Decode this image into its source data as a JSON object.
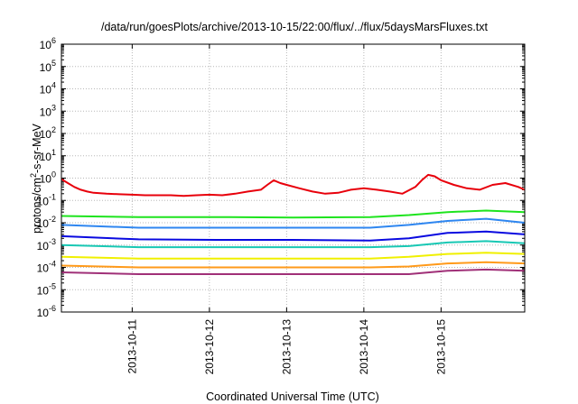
{
  "chart_data": {
    "type": "line",
    "title": "/data/run/goesPlots/archive/2013-10-15/22:00/flux/../flux/5daysMarsFluxes.txt",
    "xlabel": "Coordinated Universal Time (UTC)",
    "ylabel": {
      "prefix": "protons/cm",
      "superscript": "2",
      "suffix": "-s-sr-MeV"
    },
    "yscale": "log",
    "ylim": [
      1e-06,
      1000000.0
    ],
    "y_ticks": [
      {
        "value": 1e-06,
        "base": "10",
        "exp": "-6"
      },
      {
        "value": 1e-05,
        "base": "10",
        "exp": "-5"
      },
      {
        "value": 0.0001,
        "base": "10",
        "exp": "-4"
      },
      {
        "value": 0.001,
        "base": "10",
        "exp": "-3"
      },
      {
        "value": 0.01,
        "base": "10",
        "exp": "-2"
      },
      {
        "value": 0.1,
        "base": "10",
        "exp": "-1"
      },
      {
        "value": 1.0,
        "base": "10",
        "exp": "0"
      },
      {
        "value": 10.0,
        "base": "10",
        "exp": "1"
      },
      {
        "value": 100.0,
        "base": "10",
        "exp": "2"
      },
      {
        "value": 1000.0,
        "base": "10",
        "exp": "3"
      },
      {
        "value": 10000.0,
        "base": "10",
        "exp": "4"
      },
      {
        "value": 100000.0,
        "base": "10",
        "exp": "5"
      },
      {
        "value": 1000000.0,
        "base": "10",
        "exp": "6"
      }
    ],
    "xlim": [
      "2013-10-10 02:00",
      "2013-10-16 02:00"
    ],
    "x_ticks": [
      "2013-10-11",
      "2013-10-12",
      "2013-10-13",
      "2013-10-14",
      "2013-10-15"
    ],
    "grid": true,
    "series": [
      {
        "color": "#e8000b",
        "x": [
          "2013-10-10 02:00",
          "2013-10-10 04:00",
          "2013-10-10 06:00",
          "2013-10-10 08:00",
          "2013-10-10 10:00",
          "2013-10-10 12:00",
          "2013-10-10 16:00",
          "2013-10-10 20:00",
          "2013-10-11 00:00",
          "2013-10-11 04:00",
          "2013-10-11 08:00",
          "2013-10-11 12:00",
          "2013-10-11 16:00",
          "2013-10-11 20:00",
          "2013-10-12 00:00",
          "2013-10-12 04:00",
          "2013-10-12 08:00",
          "2013-10-12 12:00",
          "2013-10-12 16:00",
          "2013-10-12 18:00",
          "2013-10-12 20:00",
          "2013-10-12 22:00",
          "2013-10-13 00:00",
          "2013-10-13 04:00",
          "2013-10-13 08:00",
          "2013-10-13 12:00",
          "2013-10-13 16:00",
          "2013-10-13 20:00",
          "2013-10-14 00:00",
          "2013-10-14 04:00",
          "2013-10-14 08:00",
          "2013-10-14 12:00",
          "2013-10-14 16:00",
          "2013-10-14 18:00",
          "2013-10-14 20:00",
          "2013-10-14 22:00",
          "2013-10-15 00:00",
          "2013-10-15 04:00",
          "2013-10-15 08:00",
          "2013-10-15 12:00",
          "2013-10-15 16:00",
          "2013-10-15 20:00",
          "2013-10-16 00:00",
          "2013-10-16 02:00"
        ],
        "values": [
          0.9,
          0.6,
          0.4,
          0.3,
          0.25,
          0.22,
          0.2,
          0.19,
          0.18,
          0.17,
          0.17,
          0.17,
          0.16,
          0.17,
          0.18,
          0.17,
          0.2,
          0.25,
          0.3,
          0.5,
          0.8,
          0.6,
          0.5,
          0.35,
          0.25,
          0.2,
          0.22,
          0.3,
          0.35,
          0.3,
          0.25,
          0.2,
          0.4,
          0.8,
          1.4,
          1.2,
          0.8,
          0.5,
          0.35,
          0.3,
          0.5,
          0.6,
          0.4,
          0.3
        ]
      },
      {
        "color": "#1ee41e",
        "x": [
          "2013-10-10 02:00",
          "2013-10-11 02:00",
          "2013-10-12 02:00",
          "2013-10-13 02:00",
          "2013-10-14 02:00",
          "2013-10-14 14:00",
          "2013-10-15 02:00",
          "2013-10-15 14:00",
          "2013-10-16 02:00"
        ],
        "values": [
          0.02,
          0.018,
          0.018,
          0.017,
          0.018,
          0.022,
          0.03,
          0.035,
          0.03
        ]
      },
      {
        "color": "#2e86f0",
        "x": [
          "2013-10-10 02:00",
          "2013-10-11 02:00",
          "2013-10-12 02:00",
          "2013-10-13 02:00",
          "2013-10-14 02:00",
          "2013-10-14 14:00",
          "2013-10-15 02:00",
          "2013-10-15 14:00",
          "2013-10-16 02:00"
        ],
        "values": [
          0.008,
          0.006,
          0.006,
          0.006,
          0.006,
          0.008,
          0.012,
          0.015,
          0.01
        ]
      },
      {
        "color": "#0a0ae0",
        "x": [
          "2013-10-10 02:00",
          "2013-10-11 02:00",
          "2013-10-12 02:00",
          "2013-10-13 02:00",
          "2013-10-14 02:00",
          "2013-10-14 14:00",
          "2013-10-15 02:00",
          "2013-10-15 14:00",
          "2013-10-16 02:00"
        ],
        "values": [
          0.0025,
          0.0018,
          0.0017,
          0.0017,
          0.0016,
          0.002,
          0.0035,
          0.004,
          0.003
        ]
      },
      {
        "color": "#18c8b4",
        "x": [
          "2013-10-10 02:00",
          "2013-10-11 02:00",
          "2013-10-12 02:00",
          "2013-10-13 02:00",
          "2013-10-14 02:00",
          "2013-10-14 14:00",
          "2013-10-15 02:00",
          "2013-10-15 14:00",
          "2013-10-16 02:00"
        ],
        "values": [
          0.001,
          0.0008,
          0.0008,
          0.0008,
          0.0008,
          0.0009,
          0.0013,
          0.0015,
          0.0012
        ]
      },
      {
        "color": "#f0f000",
        "x": [
          "2013-10-10 02:00",
          "2013-10-11 02:00",
          "2013-10-12 02:00",
          "2013-10-13 02:00",
          "2013-10-14 02:00",
          "2013-10-14 14:00",
          "2013-10-15 02:00",
          "2013-10-15 14:00",
          "2013-10-16 02:00"
        ],
        "values": [
          0.0003,
          0.00025,
          0.00025,
          0.00025,
          0.00025,
          0.0003,
          0.0004,
          0.00045,
          0.0004
        ]
      },
      {
        "color": "#ff9a1a",
        "x": [
          "2013-10-10 02:00",
          "2013-10-11 02:00",
          "2013-10-12 02:00",
          "2013-10-13 02:00",
          "2013-10-14 02:00",
          "2013-10-14 14:00",
          "2013-10-15 02:00",
          "2013-10-15 14:00",
          "2013-10-16 02:00"
        ],
        "values": [
          0.00012,
          0.0001,
          0.0001,
          0.0001,
          0.0001,
          0.00011,
          0.00015,
          0.00017,
          0.00015
        ]
      },
      {
        "color": "#a03078",
        "x": [
          "2013-10-10 02:00",
          "2013-10-11 02:00",
          "2013-10-12 02:00",
          "2013-10-13 02:00",
          "2013-10-14 02:00",
          "2013-10-14 14:00",
          "2013-10-15 02:00",
          "2013-10-15 14:00",
          "2013-10-16 02:00"
        ],
        "values": [
          6e-05,
          5e-05,
          5e-05,
          5e-05,
          5e-05,
          5e-05,
          7e-05,
          8e-05,
          7e-05
        ]
      }
    ]
  }
}
